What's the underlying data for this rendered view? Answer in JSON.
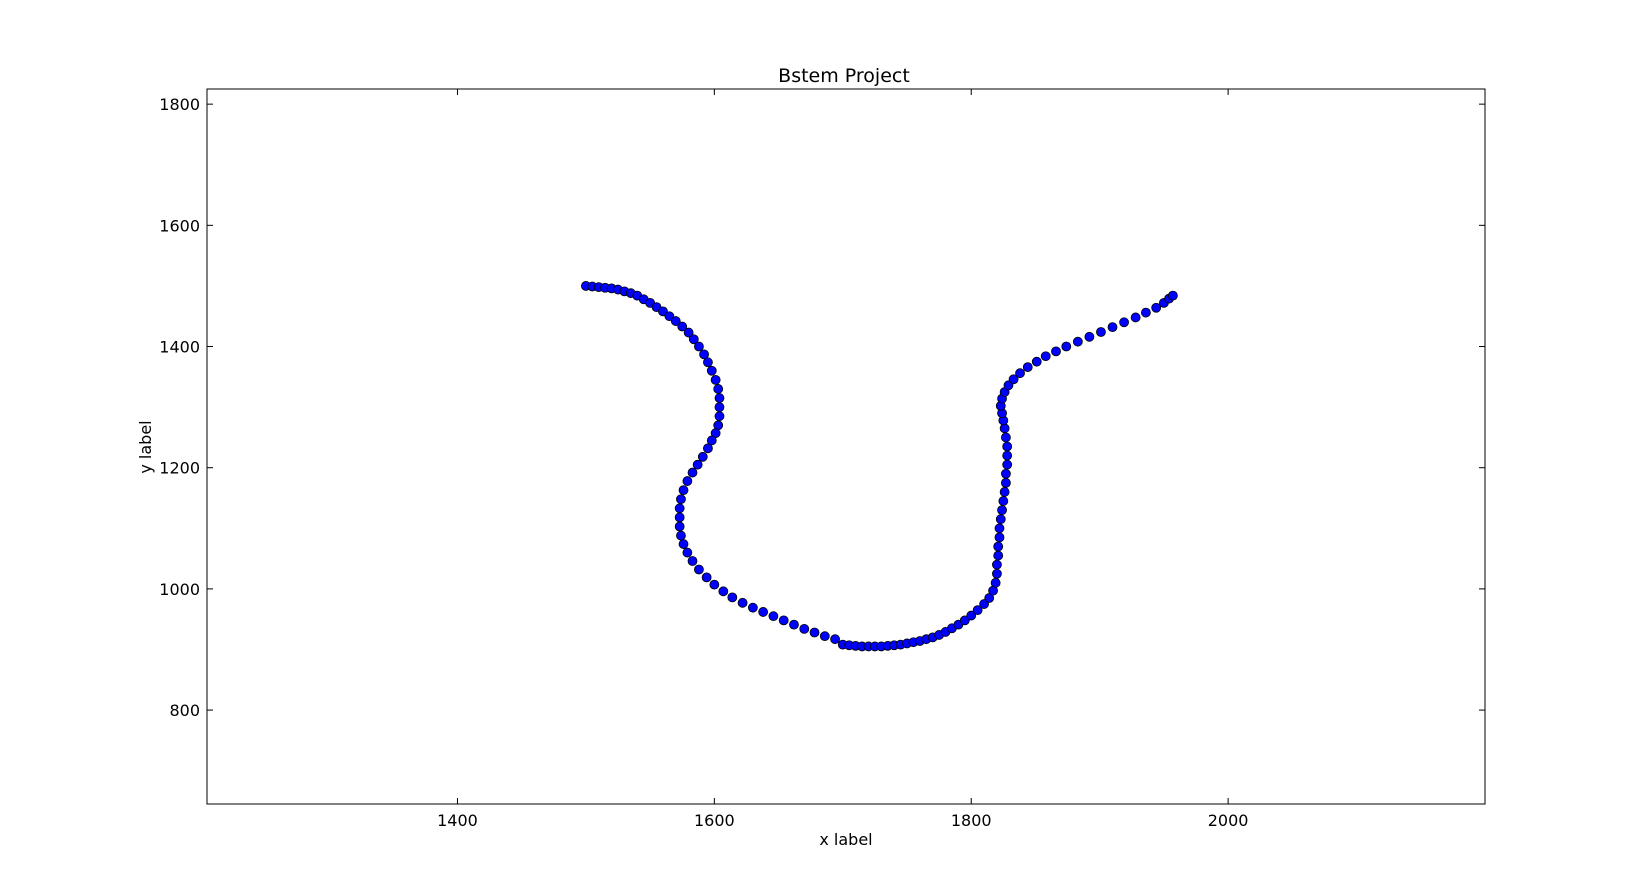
{
  "chart_data": {
    "type": "scatter",
    "title": "Bstem Project",
    "xlabel": "x label",
    "ylabel": "y label",
    "xlim": [
      1205,
      2200
    ],
    "ylim": [
      645,
      1825
    ],
    "xticks": [
      1400,
      1600,
      1800,
      2000
    ],
    "yticks": [
      800,
      1000,
      1200,
      1400,
      1600,
      1800
    ],
    "grid": false,
    "legend": "none",
    "marker_color": "#0000ff",
    "marker_edge_color": "#000000",
    "series": [
      {
        "points": [
          [
            1500,
            1500
          ],
          [
            1505,
            1499
          ],
          [
            1510,
            1498
          ],
          [
            1515,
            1497
          ],
          [
            1520,
            1496
          ],
          [
            1525,
            1494
          ],
          [
            1530,
            1491
          ],
          [
            1535,
            1488
          ],
          [
            1540,
            1484
          ],
          [
            1545,
            1478
          ],
          [
            1550,
            1472
          ],
          [
            1555,
            1465
          ],
          [
            1560,
            1458
          ],
          [
            1565,
            1450
          ],
          [
            1570,
            1442
          ],
          [
            1575,
            1433
          ],
          [
            1580,
            1423
          ],
          [
            1584,
            1412
          ],
          [
            1588,
            1400
          ],
          [
            1592,
            1387
          ],
          [
            1595,
            1374
          ],
          [
            1598,
            1360
          ],
          [
            1601,
            1345
          ],
          [
            1603,
            1330
          ],
          [
            1604,
            1315
          ],
          [
            1604,
            1300
          ],
          [
            1604,
            1285
          ],
          [
            1603,
            1270
          ],
          [
            1601,
            1257
          ],
          [
            1598,
            1245
          ],
          [
            1595,
            1232
          ],
          [
            1591,
            1218
          ],
          [
            1587,
            1205
          ],
          [
            1583,
            1192
          ],
          [
            1579,
            1178
          ],
          [
            1576,
            1163
          ],
          [
            1574,
            1148
          ],
          [
            1573,
            1133
          ],
          [
            1573,
            1118
          ],
          [
            1573,
            1103
          ],
          [
            1574,
            1088
          ],
          [
            1576,
            1074
          ],
          [
            1579,
            1060
          ],
          [
            1583,
            1046
          ],
          [
            1588,
            1032
          ],
          [
            1594,
            1019
          ],
          [
            1600,
            1007
          ],
          [
            1607,
            996
          ],
          [
            1614,
            986
          ],
          [
            1622,
            977
          ],
          [
            1630,
            969
          ],
          [
            1638,
            962
          ],
          [
            1646,
            955
          ],
          [
            1654,
            948
          ],
          [
            1662,
            941
          ],
          [
            1670,
            934
          ],
          [
            1678,
            928
          ],
          [
            1686,
            922
          ],
          [
            1694,
            917
          ],
          [
            1700,
            908
          ],
          [
            1705,
            907
          ],
          [
            1710,
            906
          ],
          [
            1715,
            905
          ],
          [
            1720,
            905
          ],
          [
            1725,
            905
          ],
          [
            1730,
            905
          ],
          [
            1735,
            906
          ],
          [
            1740,
            907
          ],
          [
            1745,
            908
          ],
          [
            1750,
            910
          ],
          [
            1755,
            912
          ],
          [
            1760,
            914
          ],
          [
            1765,
            917
          ],
          [
            1770,
            920
          ],
          [
            1775,
            924
          ],
          [
            1780,
            929
          ],
          [
            1785,
            935
          ],
          [
            1790,
            941
          ],
          [
            1795,
            948
          ],
          [
            1800,
            956
          ],
          [
            1805,
            965
          ],
          [
            1810,
            975
          ],
          [
            1814,
            985
          ],
          [
            1817,
            997
          ],
          [
            1819,
            1010
          ],
          [
            1820,
            1025
          ],
          [
            1820,
            1040
          ],
          [
            1821,
            1055
          ],
          [
            1821,
            1070
          ],
          [
            1822,
            1085
          ],
          [
            1822,
            1100
          ],
          [
            1823,
            1115
          ],
          [
            1824,
            1130
          ],
          [
            1825,
            1145
          ],
          [
            1826,
            1160
          ],
          [
            1827,
            1175
          ],
          [
            1827,
            1190
          ],
          [
            1828,
            1205
          ],
          [
            1828,
            1220
          ],
          [
            1828,
            1235
          ],
          [
            1827,
            1250
          ],
          [
            1826,
            1265
          ],
          [
            1825,
            1278
          ],
          [
            1824,
            1290
          ],
          [
            1823,
            1302
          ],
          [
            1824,
            1314
          ],
          [
            1826,
            1325
          ],
          [
            1829,
            1336
          ],
          [
            1833,
            1346
          ],
          [
            1838,
            1356
          ],
          [
            1844,
            1366
          ],
          [
            1851,
            1375
          ],
          [
            1858,
            1384
          ],
          [
            1866,
            1392
          ],
          [
            1874,
            1400
          ],
          [
            1883,
            1408
          ],
          [
            1892,
            1416
          ],
          [
            1901,
            1424
          ],
          [
            1910,
            1432
          ],
          [
            1919,
            1440
          ],
          [
            1928,
            1448
          ],
          [
            1936,
            1456
          ],
          [
            1944,
            1464
          ],
          [
            1950,
            1472
          ],
          [
            1954,
            1479
          ],
          [
            1957,
            1484
          ]
        ]
      }
    ]
  }
}
